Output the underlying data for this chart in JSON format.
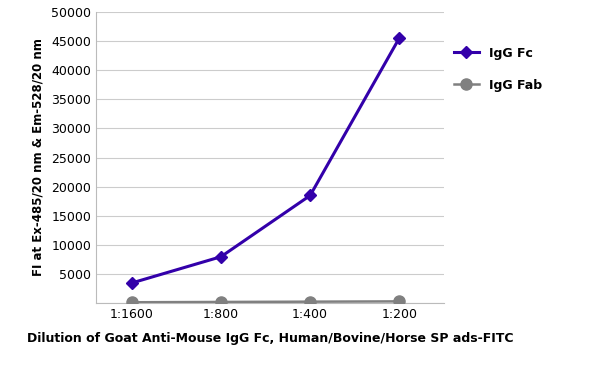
{
  "x_labels": [
    "1:1600",
    "1:800",
    "1:400",
    "1:200"
  ],
  "x_positions": [
    1,
    2,
    3,
    4
  ],
  "igg_fc_values": [
    3500,
    8000,
    18500,
    45500
  ],
  "igg_fab_values": [
    200,
    250,
    300,
    350
  ],
  "igg_fc_color": "#3300AA",
  "igg_fab_color": "#808080",
  "ylabel": "FI at Ex-485/20 nm & Em-528/20 nm",
  "xlabel": "Dilution of Goat Anti-Mouse IgG Fc, Human/Bovine/Horse SP ads-FITC",
  "ylim": [
    0,
    50000
  ],
  "yticks": [
    0,
    5000,
    10000,
    15000,
    20000,
    25000,
    30000,
    35000,
    40000,
    45000,
    50000
  ],
  "legend_labels": [
    "IgG Fc",
    "IgG Fab"
  ],
  "background_color": "#ffffff",
  "plot_bg_color": "#ffffff",
  "grid_color": "#cccccc"
}
